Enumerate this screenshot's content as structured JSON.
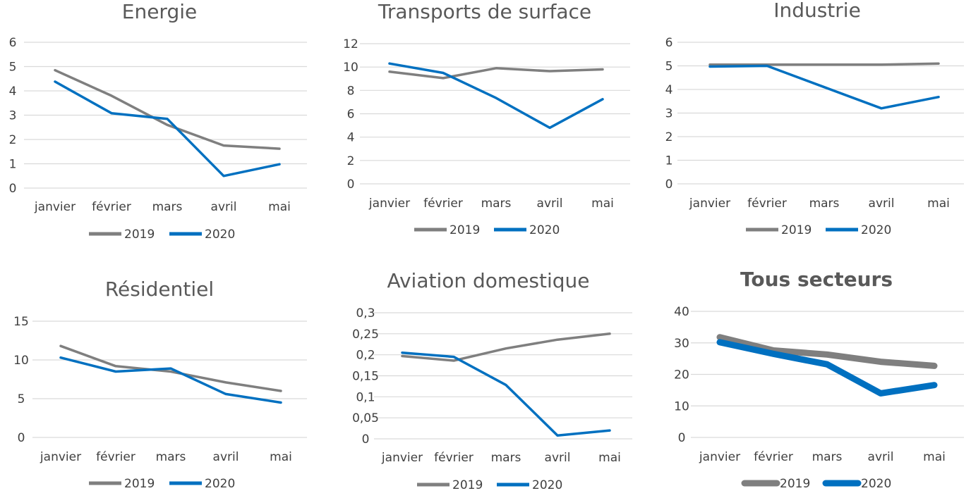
{
  "chart_data": [
    {
      "type": "line",
      "title": "Energie",
      "categories": [
        "janvier",
        "février",
        "mars",
        "avril",
        "mai"
      ],
      "ylim": [
        0,
        6
      ],
      "yticks": [
        "0",
        "1",
        "2",
        "3",
        "4",
        "5",
        "6"
      ],
      "grid": true,
      "legend": "bottom",
      "series": [
        {
          "name": "2019",
          "color": "#7f7f7f",
          "values": [
            4.85,
            3.8,
            2.6,
            1.75,
            1.62
          ]
        },
        {
          "name": "2020",
          "color": "#0070c0",
          "values": [
            4.38,
            3.08,
            2.85,
            0.5,
            0.98
          ]
        }
      ]
    },
    {
      "type": "line",
      "title": "Transports  de surface",
      "categories": [
        "janvier",
        "février",
        "mars",
        "avril",
        "mai"
      ],
      "ylim": [
        0,
        12
      ],
      "yticks": [
        "0",
        "2",
        "4",
        "6",
        "8",
        "10",
        "12"
      ],
      "grid": true,
      "legend": "bottom",
      "series": [
        {
          "name": "2019",
          "color": "#7f7f7f",
          "values": [
            9.6,
            9.05,
            9.9,
            9.65,
            9.8
          ]
        },
        {
          "name": "2020",
          "color": "#0070c0",
          "values": [
            10.3,
            9.5,
            7.35,
            4.8,
            7.25
          ]
        }
      ]
    },
    {
      "type": "line",
      "title": "Industrie",
      "categories": [
        "janvier",
        "février",
        "mars",
        "avril",
        "mai"
      ],
      "ylim": [
        0,
        6
      ],
      "yticks": [
        "0",
        "1",
        "2",
        "3",
        "4",
        "5",
        "6"
      ],
      "grid": true,
      "legend": "bottom",
      "series": [
        {
          "name": "2019",
          "color": "#7f7f7f",
          "values": [
            5.05,
            5.05,
            5.05,
            5.05,
            5.1
          ]
        },
        {
          "name": "2020",
          "color": "#0070c0",
          "values": [
            4.97,
            5.0,
            4.1,
            3.2,
            3.68
          ]
        }
      ]
    },
    {
      "type": "line",
      "title": "Résidentiel",
      "categories": [
        "janvier",
        "février",
        "mars",
        "avril",
        "mai"
      ],
      "ylim": [
        0,
        15
      ],
      "yticks": [
        "0",
        "5",
        "10",
        "15"
      ],
      "grid": true,
      "legend": "bottom",
      "series": [
        {
          "name": "2019",
          "color": "#7f7f7f",
          "values": [
            11.8,
            9.2,
            8.5,
            7.1,
            6.0
          ]
        },
        {
          "name": "2020",
          "color": "#0070c0",
          "values": [
            10.3,
            8.5,
            8.9,
            5.6,
            4.5
          ]
        }
      ]
    },
    {
      "type": "line",
      "title": "Aviation domestique",
      "categories": [
        "janvier",
        "février",
        "mars",
        "avril",
        "mai"
      ],
      "ylim": [
        0,
        0.3
      ],
      "yticks": [
        "0",
        "0,05",
        "0,1",
        "0,15",
        "0,2",
        "0,25",
        "0,3"
      ],
      "grid": true,
      "legend": "bottom",
      "series": [
        {
          "name": "2019",
          "color": "#7f7f7f",
          "values": [
            0.197,
            0.186,
            0.215,
            0.236,
            0.25
          ]
        },
        {
          "name": "2020",
          "color": "#0070c0",
          "values": [
            0.205,
            0.195,
            0.128,
            0.008,
            0.02
          ]
        }
      ]
    },
    {
      "type": "line",
      "title": "Tous secteurs",
      "title_bold": true,
      "thick": true,
      "categories": [
        "janvier",
        "février",
        "mars",
        "avril",
        "mai"
      ],
      "ylim": [
        0,
        40
      ],
      "yticks": [
        "0",
        "10",
        "20",
        "30",
        "40"
      ],
      "grid": true,
      "legend": "bottom",
      "series": [
        {
          "name": "2019",
          "color": "#7f7f7f",
          "values": [
            31.8,
            27.6,
            26.3,
            24.0,
            22.7
          ]
        },
        {
          "name": "2020",
          "color": "#0070c0",
          "values": [
            30.2,
            26.5,
            23.2,
            14.0,
            16.6
          ]
        }
      ]
    }
  ]
}
